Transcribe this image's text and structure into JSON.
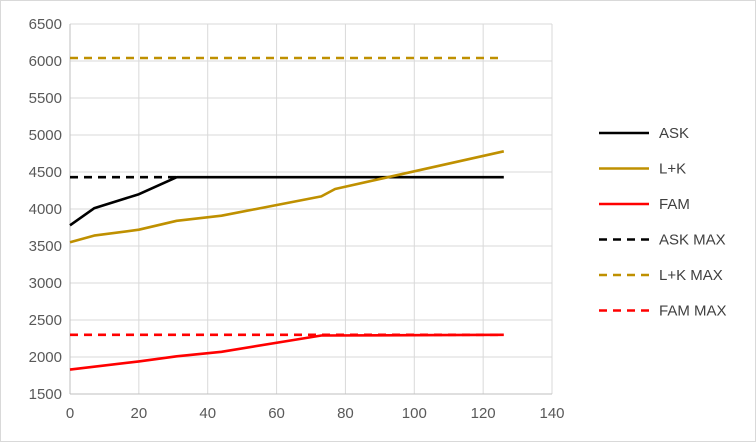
{
  "chart_data": {
    "type": "line",
    "title": "",
    "xlabel": "",
    "ylabel": "",
    "xlim": [
      0,
      140
    ],
    "ylim": [
      1500,
      6500
    ],
    "x_ticks": [
      0,
      20,
      40,
      60,
      80,
      100,
      120,
      140
    ],
    "y_ticks": [
      1500,
      2000,
      2500,
      3000,
      3500,
      4000,
      4500,
      5000,
      5500,
      6000,
      6500
    ],
    "grid": "horizontal and vertical",
    "legend_position": "right",
    "series": [
      {
        "name": "ASK",
        "color": "#000000",
        "dash": "solid",
        "points": [
          [
            0,
            3780
          ],
          [
            7,
            4010
          ],
          [
            20,
            4200
          ],
          [
            31,
            4430
          ],
          [
            126,
            4430
          ]
        ]
      },
      {
        "name": "L+K",
        "color": "#bf9000",
        "dash": "solid",
        "points": [
          [
            0,
            3550
          ],
          [
            7,
            3640
          ],
          [
            20,
            3720
          ],
          [
            31,
            3840
          ],
          [
            44,
            3910
          ],
          [
            73,
            4170
          ],
          [
            77,
            4270
          ],
          [
            126,
            4780
          ]
        ]
      },
      {
        "name": "FAM",
        "color": "#ff0000",
        "dash": "solid",
        "points": [
          [
            0,
            1830
          ],
          [
            20,
            1940
          ],
          [
            31,
            2010
          ],
          [
            44,
            2070
          ],
          [
            73,
            2290
          ],
          [
            126,
            2300
          ]
        ]
      },
      {
        "name": "ASK MAX",
        "color": "#000000",
        "dash": "dashed",
        "points": [
          [
            0,
            4430
          ],
          [
            31,
            4430
          ]
        ]
      },
      {
        "name": "L+K MAX",
        "color": "#bf9000",
        "dash": "dashed",
        "points": [
          [
            0,
            6040
          ],
          [
            126,
            6040
          ]
        ]
      },
      {
        "name": "FAM MAX",
        "color": "#ff0000",
        "dash": "dashed",
        "points": [
          [
            0,
            2300
          ],
          [
            126,
            2300
          ]
        ]
      }
    ]
  }
}
